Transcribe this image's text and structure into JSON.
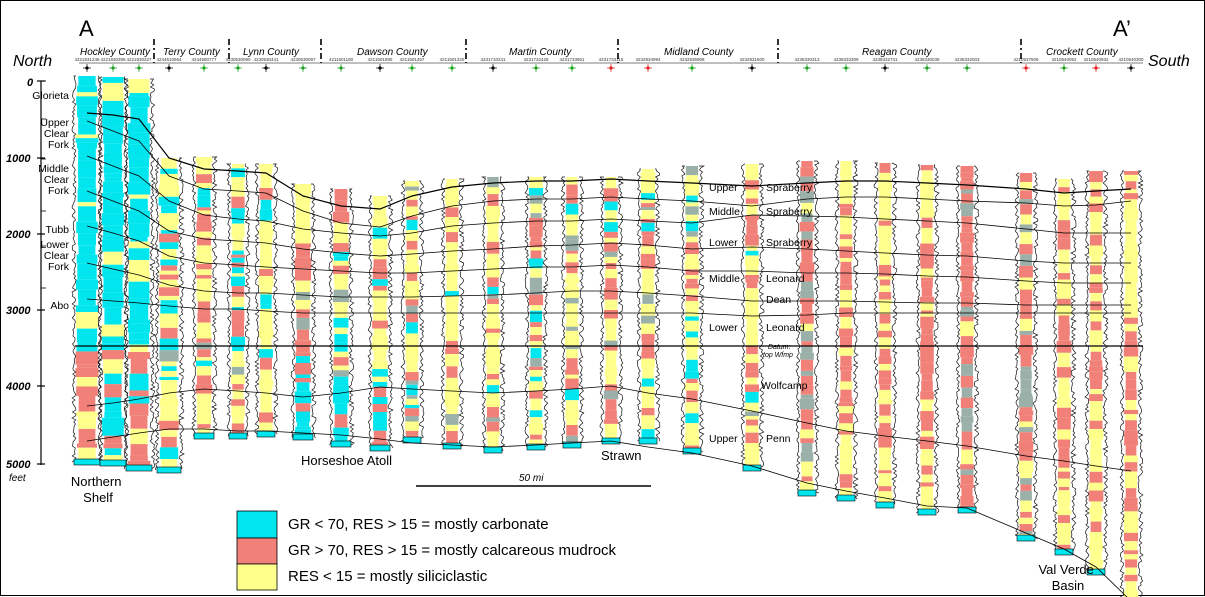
{
  "section": {
    "start_label": "A",
    "end_label": "A’",
    "north_label": "North",
    "south_label": "South"
  },
  "counties": [
    "Hockley County",
    "Terry County",
    "Lynn County",
    "Dawson County",
    "Martin County",
    "Midland County",
    "Reagan County",
    "Crockett County"
  ],
  "depth_axis": {
    "ticks": [
      "0",
      "1000",
      "2000",
      "3000",
      "4000",
      "5000"
    ],
    "unit": "feet"
  },
  "units_left": [
    "Glorieta",
    "Upper\nClear\nFork",
    "Middle\nClear\nFork",
    "Tubb",
    "Lower\nClear\nFork",
    "Abo"
  ],
  "units_right": [
    {
      "qualifier": "Upper",
      "name": "Spraberry"
    },
    {
      "qualifier": "Middle",
      "name": "Spraberry"
    },
    {
      "qualifier": "Lower",
      "name": "Spraberry"
    },
    {
      "qualifier": "Middle",
      "name": "Leonard"
    },
    {
      "qualifier": "",
      "name": "Dean"
    },
    {
      "qualifier": "Lower",
      "name": "Leonard"
    },
    {
      "qualifier": "",
      "name": "Wolfcamp"
    },
    {
      "qualifier": "Upper",
      "name": "Penn"
    }
  ],
  "datum_label": [
    "Datum:",
    "top Wfmp"
  ],
  "regions": [
    "Northern\nShelf",
    "Horseshoe Atoll",
    "Strawn",
    "Val Verde\nBasin"
  ],
  "scale_bar_label": "50 mi",
  "legend": [
    {
      "color": "#00e5ee",
      "label": "GR < 70, RES > 15 = mostly carbonate"
    },
    {
      "color": "#f08078",
      "label": "GR > 70, RES > 15 = mostly calcareous mudrock"
    },
    {
      "color": "#ffff8c",
      "label": "RES < 15 = mostly siliciclastic"
    }
  ],
  "colors": {
    "carbonate": "#00e5ee",
    "mudrock": "#f08078",
    "siliciclastic": "#ffff8c",
    "accent_red": "#e02020",
    "accent_green": "#20a020"
  },
  "well_ids": [
    "4221931246",
    "4221930396",
    "4221930327",
    "4244510564",
    "4244580777",
    "4230530090",
    "4230530441",
    "4230530097",
    "4211501180",
    "4211501590",
    "4211501457",
    "4211501320",
    "4231710241",
    "4231732426",
    "4231733961",
    "4231733115",
    "4232934994",
    "4232935908",
    "4232931600",
    "4238330313",
    "4238333309",
    "4238332741",
    "4238330039",
    "4238332003",
    "4210537606",
    "4210540052",
    "4210540932",
    "4210540300"
  ]
}
